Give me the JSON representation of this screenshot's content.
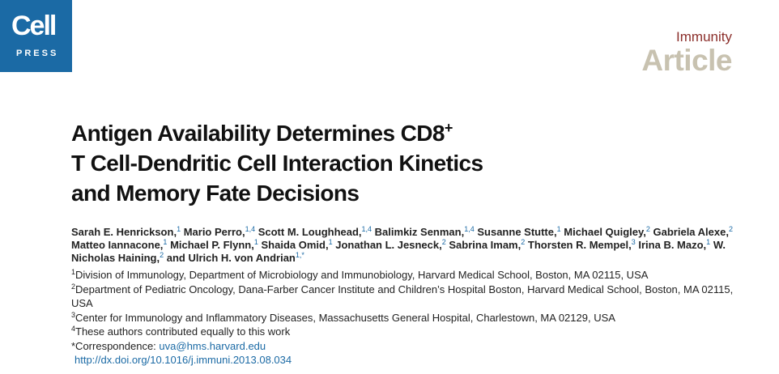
{
  "brand": {
    "logo_top": "Cell",
    "logo_bottom": "PRESS"
  },
  "journal": "Immunity",
  "article_type": "Article",
  "title": {
    "line1": "Antigen Availability Determines CD8",
    "line1_sup": "+",
    "line2": "T Cell-Dendritic Cell Interaction Kinetics",
    "line3": "and Memory Fate Decisions"
  },
  "authors": [
    {
      "name": "Sarah E. Henrickson,",
      "aff": "1"
    },
    {
      "name": "Mario Perro,",
      "aff": "1,4"
    },
    {
      "name": "Scott M. Loughhead,",
      "aff": "1,4"
    },
    {
      "name": "Balimkiz Senman,",
      "aff": "1,4"
    },
    {
      "name": "Susanne Stutte,",
      "aff": "1"
    },
    {
      "name": "Michael Quigley,",
      "aff": "2"
    },
    {
      "name": "Gabriela Alexe,",
      "aff": "2"
    },
    {
      "name": "Matteo Iannacone,",
      "aff": "1"
    },
    {
      "name": "Michael P. Flynn,",
      "aff": "1"
    },
    {
      "name": "Shaida Omid,",
      "aff": "1"
    },
    {
      "name": "Jonathan L. Jesneck,",
      "aff": "2"
    },
    {
      "name": "Sabrina Imam,",
      "aff": "2"
    },
    {
      "name": "Thorsten R. Mempel,",
      "aff": "3"
    },
    {
      "name": "Irina B. Mazo,",
      "aff": "1"
    },
    {
      "name": "W. Nicholas Haining,",
      "aff": "2"
    },
    {
      "name": "and Ulrich H. von Andrian",
      "aff": "1,*"
    }
  ],
  "affiliations": [
    {
      "num": "1",
      "text": "Division of Immunology, Department of Microbiology and Immunobiology, Harvard Medical School, Boston, MA 02115, USA"
    },
    {
      "num": "2",
      "text": "Department of Pediatric Oncology, Dana-Farber Cancer Institute and Children’s Hospital Boston, Harvard Medical School, Boston, MA 02115, USA"
    },
    {
      "num": "3",
      "text": "Center for Immunology and Inflammatory Diseases, Massachusetts General Hospital, Charlestown, MA 02129, USA"
    },
    {
      "num": "4",
      "text": "These authors contributed equally to this work"
    }
  ],
  "correspondence": {
    "label": "*Correspondence:",
    "email": "uva@hms.harvard.edu"
  },
  "doi": "http://dx.doi.org/10.1016/j.immuni.2013.08.034",
  "colors": {
    "brand_blue": "#1b6aa5",
    "journal_red": "#8b2e2a",
    "article_gray": "#c8c2b0"
  }
}
